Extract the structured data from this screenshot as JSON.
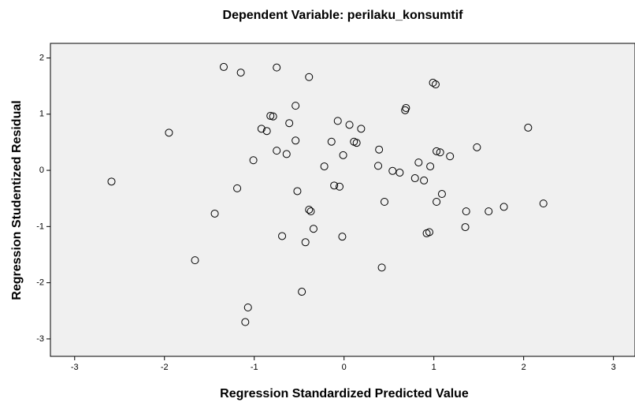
{
  "chart_data": {
    "type": "scatter",
    "title": "Dependent Variable: perilaku_konsumtif",
    "x_label": "Regression Standardized Predicted Value",
    "y_label": "Regression Studentized Residual",
    "xlim": [
      -3.27,
      3.24
    ],
    "ylim": [
      -3.31,
      2.26
    ],
    "xticks": [
      -3,
      -2,
      -1,
      0,
      1,
      2,
      3
    ],
    "yticks": [
      -3,
      -2,
      -1,
      0,
      1,
      2
    ],
    "color": "#000000",
    "background": "#f0f0f0",
    "x": [
      -2.59,
      -1.95,
      -1.34,
      -1.15,
      -0.75,
      -0.39,
      0.99,
      1.02,
      0.69,
      0.68,
      -0.54,
      -0.82,
      -0.79,
      -0.61,
      -0.07,
      0.06,
      0.19,
      -0.92,
      -0.86,
      -0.54,
      -0.14,
      0.11,
      0.14,
      -0.75,
      -0.64,
      -1.01,
      -0.01,
      -0.22,
      0.39,
      0.38,
      0.54,
      0.62,
      0.83,
      0.96,
      1.03,
      1.07,
      1.18,
      1.48,
      2.05,
      0.79,
      0.89,
      -0.11,
      -0.05,
      -0.52,
      -1.19,
      -1.44,
      0.45,
      1.03,
      1.09,
      -0.39,
      -0.37,
      1.36,
      1.61,
      1.78,
      2.22,
      -0.34,
      -0.69,
      -0.02,
      -0.43,
      0.92,
      0.95,
      1.35,
      0.42,
      -1.66,
      -0.47,
      -1.07,
      -1.1
    ],
    "values": [
      -0.2,
      0.67,
      1.84,
      1.74,
      1.83,
      1.66,
      1.56,
      1.53,
      1.11,
      1.07,
      1.15,
      0.97,
      0.96,
      0.84,
      0.88,
      0.81,
      0.74,
      0.74,
      0.7,
      0.53,
      0.51,
      0.51,
      0.49,
      0.35,
      0.29,
      0.18,
      0.27,
      0.07,
      0.37,
      0.08,
      -0.01,
      -0.04,
      0.14,
      0.07,
      0.34,
      0.32,
      0.25,
      0.41,
      0.76,
      -0.14,
      -0.18,
      -0.27,
      -0.29,
      -0.37,
      -0.32,
      -0.77,
      -0.56,
      -0.56,
      -0.42,
      -0.7,
      -0.73,
      -0.73,
      -0.73,
      -0.65,
      -0.59,
      -1.04,
      -1.17,
      -1.18,
      -1.28,
      -1.12,
      -1.1,
      -1.01,
      -1.73,
      -1.6,
      -2.16,
      -2.44,
      -2.7
    ]
  }
}
